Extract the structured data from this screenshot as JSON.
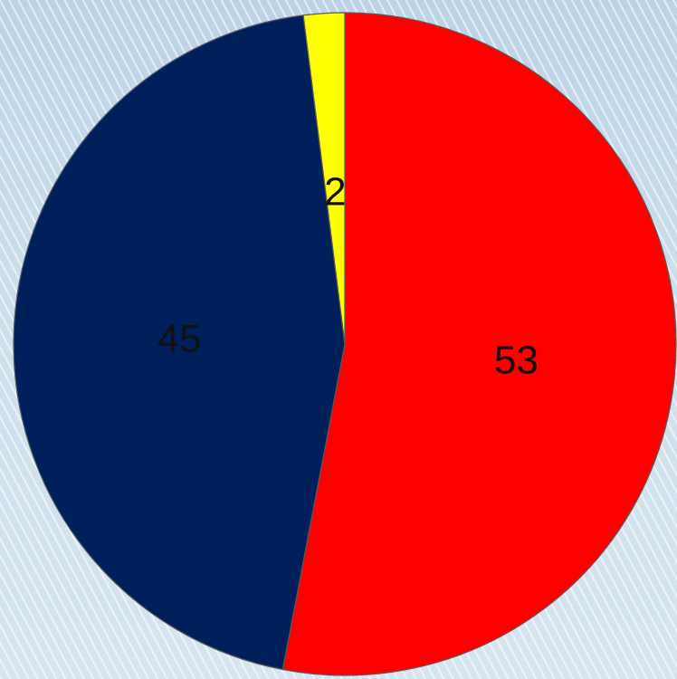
{
  "chart_data": {
    "type": "pie",
    "title": "",
    "slices": [
      {
        "label": "53",
        "value": 53,
        "color": "#ff0000"
      },
      {
        "label": "45",
        "value": 45,
        "color": "#00205b"
      },
      {
        "label": "2",
        "value": 2,
        "color": "#ffff00"
      }
    ],
    "start": "top",
    "direction": "clockwise",
    "legend": "none"
  }
}
